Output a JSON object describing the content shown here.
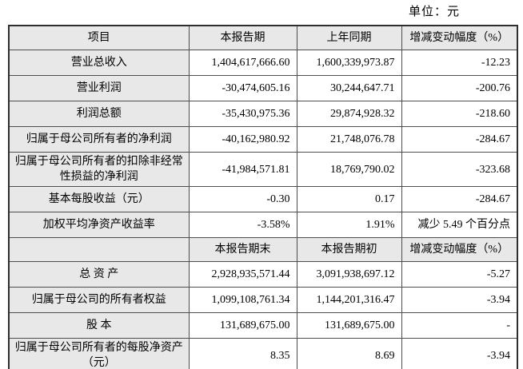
{
  "unit_label": "单位：元",
  "colors": {
    "label_bg": "#e8e8e8",
    "border": "#4d4d4d",
    "text": "#000000"
  },
  "section1": {
    "headers": [
      "项目",
      "本报告期",
      "上年同期",
      "增减变动幅度（%）"
    ],
    "rows": [
      {
        "label": "营业总收入",
        "current": "1,404,617,666.60",
        "prior": "1,600,339,973.87",
        "change": "-12.23"
      },
      {
        "label": "营业利润",
        "current": "-30,474,605.16",
        "prior": "30,244,647.71",
        "change": "-200.76"
      },
      {
        "label": "利润总额",
        "current": "-35,430,975.36",
        "prior": "29,874,928.32",
        "change": "-218.60"
      },
      {
        "label": "归属于母公司所有者的净利润",
        "current": "-40,162,980.92",
        "prior": "21,748,076.78",
        "change": "-284.67"
      },
      {
        "label": "归属于母公司所有者的扣除非经常性损益的净利润",
        "current": "-41,984,571.81",
        "prior": "18,769,790.02",
        "change": "-323.68"
      },
      {
        "label": "基本每股收益（元）",
        "current": "-0.30",
        "prior": "0.17",
        "change": "-284.67"
      },
      {
        "label": "加权平均净资产收益率",
        "current": "-3.58%",
        "prior": "1.91%",
        "change": "减少 5.49 个百分点"
      }
    ]
  },
  "section2": {
    "headers": [
      "",
      "本报告期末",
      "本报告期初",
      "增减变动幅度（%）"
    ],
    "rows": [
      {
        "label": "总 资 产",
        "current": "2,928,935,571.44",
        "prior": "3,091,938,697.12",
        "change": "-5.27"
      },
      {
        "label": "归属于母公司的所有者权益",
        "current": "1,099,108,761.34",
        "prior": "1,144,201,316.47",
        "change": "-3.94"
      },
      {
        "label": "股 本",
        "current": "131,689,675.00",
        "prior": "131,689,675.00",
        "change": "-"
      },
      {
        "label": "归属于母公司所有者的每股净资产（元）",
        "current": "8.35",
        "prior": "8.69",
        "change": "-3.94"
      }
    ]
  }
}
